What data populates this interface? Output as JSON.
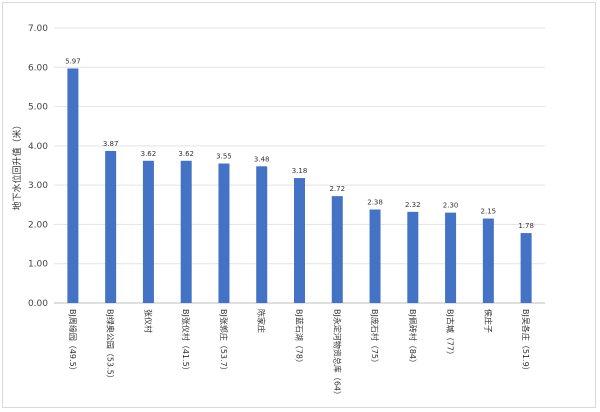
{
  "chart_data": {
    "type": "bar",
    "title": "",
    "xlabel": "",
    "ylabel": "地下水位回升值（米）",
    "ylim": [
      0,
      7
    ],
    "yticks": [
      "0.00",
      "1.00",
      "2.00",
      "3.00",
      "4.00",
      "5.00",
      "6.00",
      "7.00"
    ],
    "grid": true,
    "legend": "none",
    "bar_color": "#4472C4",
    "categories": [
      "BJ周缘园（49.5）",
      "BJ绿奥公园（53.5）",
      "张仪村",
      "BJ张仪村（41.5）",
      "BJ张郭庄（53.7）",
      "陈家庄",
      "BJ蓝石湖（78）",
      "BJ永定河物资总库（64）",
      "BJ庞石村（75）",
      "BJ佩砖村（84）",
      "BJ古城（77）",
      "侯庄子",
      "BJ吴各庄（51.9）"
    ],
    "values": [
      5.97,
      3.87,
      3.62,
      3.62,
      3.55,
      3.48,
      3.18,
      2.72,
      2.38,
      2.32,
      2.3,
      2.15,
      1.78
    ],
    "value_labels": [
      "5.97",
      "3.87",
      "3.62",
      "3.62",
      "3.55",
      "3.48",
      "3.18",
      "2.72",
      "2.38",
      "2.32",
      "2.30",
      "2.15",
      "1.78"
    ]
  }
}
